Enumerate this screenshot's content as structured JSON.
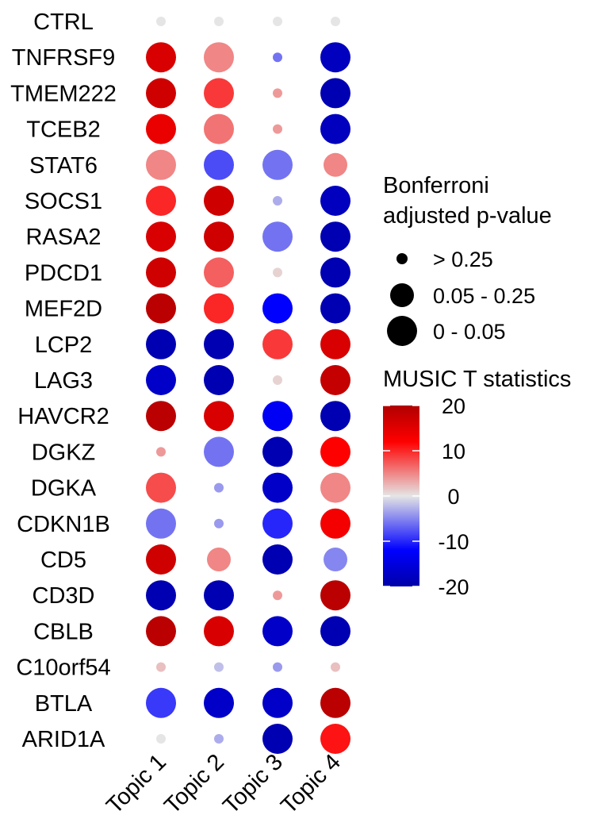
{
  "chart_data": {
    "type": "dotplot",
    "title": "",
    "xlabel": "",
    "ylabel": "",
    "columns": [
      "Topic 1",
      "Topic 2",
      "Topic 3",
      "Topic 4"
    ],
    "rows": [
      "CTRL",
      "TNFRSF9",
      "TMEM222",
      "TCEB2",
      "STAT6",
      "SOCS1",
      "RASA2",
      "PDCD1",
      "MEF2D",
      "LCP2",
      "LAG3",
      "HAVCR2",
      "DGKZ",
      "DGKA",
      "CDKN1B",
      "CD5",
      "CD3D",
      "CBLB",
      "C10orf54",
      "BTLA",
      "ARID1A"
    ],
    "t_statistics": [
      [
        0,
        0,
        0,
        0
      ],
      [
        16,
        5,
        -6,
        -18
      ],
      [
        17,
        9,
        4,
        -19
      ],
      [
        14,
        6,
        4,
        -18
      ],
      [
        5,
        -8,
        -6,
        5
      ],
      [
        10,
        17,
        -3,
        -18
      ],
      [
        16,
        17,
        -6,
        -19
      ],
      [
        17,
        7,
        1,
        -19
      ],
      [
        19,
        10,
        -12,
        -19
      ],
      [
        -19,
        -19,
        9,
        16
      ],
      [
        -17,
        -19,
        1,
        18
      ],
      [
        19,
        16,
        -13,
        -19
      ],
      [
        4,
        -6,
        -19,
        12
      ],
      [
        8,
        -4,
        -17,
        5
      ],
      [
        -6,
        -4,
        -10,
        13
      ],
      [
        17,
        5,
        -19,
        -5
      ],
      [
        -19,
        -19,
        4,
        19
      ],
      [
        19,
        16,
        -17,
        -19
      ],
      [
        2,
        -2,
        -4,
        2
      ],
      [
        -9,
        -17,
        -17,
        19
      ],
      [
        0,
        -3,
        -19,
        11
      ]
    ],
    "size_category": [
      [
        0,
        0,
        0,
        0
      ],
      [
        2,
        2,
        0,
        2
      ],
      [
        2,
        2,
        0,
        2
      ],
      [
        2,
        2,
        0,
        2
      ],
      [
        2,
        2,
        2,
        1
      ],
      [
        2,
        2,
        0,
        2
      ],
      [
        2,
        2,
        2,
        2
      ],
      [
        2,
        2,
        0,
        2
      ],
      [
        2,
        2,
        2,
        2
      ],
      [
        2,
        2,
        2,
        2
      ],
      [
        2,
        2,
        0,
        2
      ],
      [
        2,
        2,
        2,
        2
      ],
      [
        0,
        2,
        2,
        2
      ],
      [
        2,
        0,
        2,
        2
      ],
      [
        2,
        0,
        2,
        2
      ],
      [
        2,
        1,
        2,
        1
      ],
      [
        2,
        2,
        0,
        2
      ],
      [
        2,
        2,
        2,
        2
      ],
      [
        0,
        0,
        0,
        0
      ],
      [
        2,
        2,
        2,
        2
      ],
      [
        0,
        0,
        2,
        2
      ]
    ],
    "size_legend": {
      "title_lines": [
        "Bonferroni",
        "adjusted p-value"
      ],
      "items": [
        "> 0.25",
        "0.05 - 0.25",
        "0 - 0.05"
      ]
    },
    "color_legend": {
      "title": "MUSIC T statistics",
      "ticks": [
        20,
        10,
        0,
        -10,
        -20
      ],
      "range": [
        -20,
        20
      ],
      "colors": {
        "low": "#0000ff",
        "mid": "#e5e5e5",
        "high": "#ff0000",
        "dark_low": "#0000a8",
        "dark_high": "#b00000"
      }
    }
  }
}
